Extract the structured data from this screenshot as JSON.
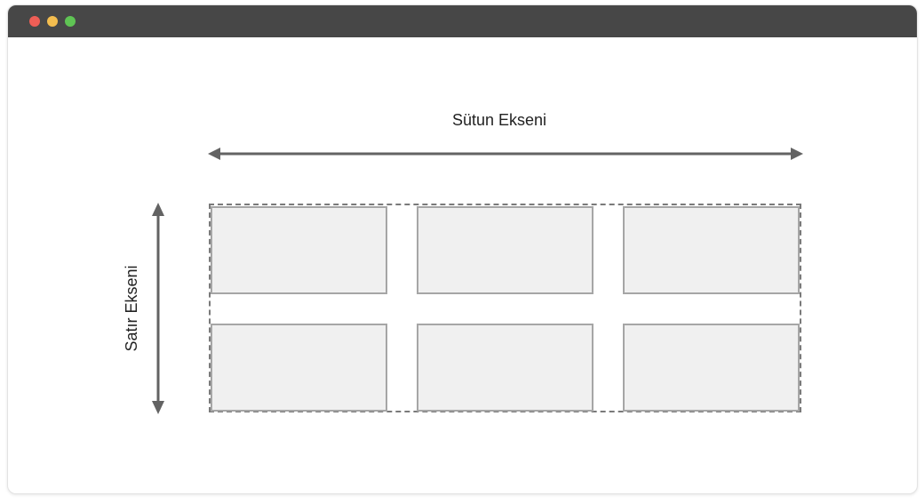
{
  "window": {
    "controls": [
      "close-dot",
      "minimize-dot",
      "maximize-dot"
    ],
    "colors": {
      "close": "#ee5e56",
      "minimize": "#f3bd4f",
      "maximize": "#5fc454",
      "titlebar": "#474747"
    }
  },
  "diagram": {
    "column_axis_label": "Sütun Ekseni",
    "row_axis_label": "Satır Ekseni",
    "grid": {
      "rows": 2,
      "columns": 3
    },
    "colors": {
      "arrow": "#636363",
      "cell_fill": "#f0f0f0",
      "cell_border": "#a6a6a6",
      "container_border": "#7a7a7a"
    }
  }
}
